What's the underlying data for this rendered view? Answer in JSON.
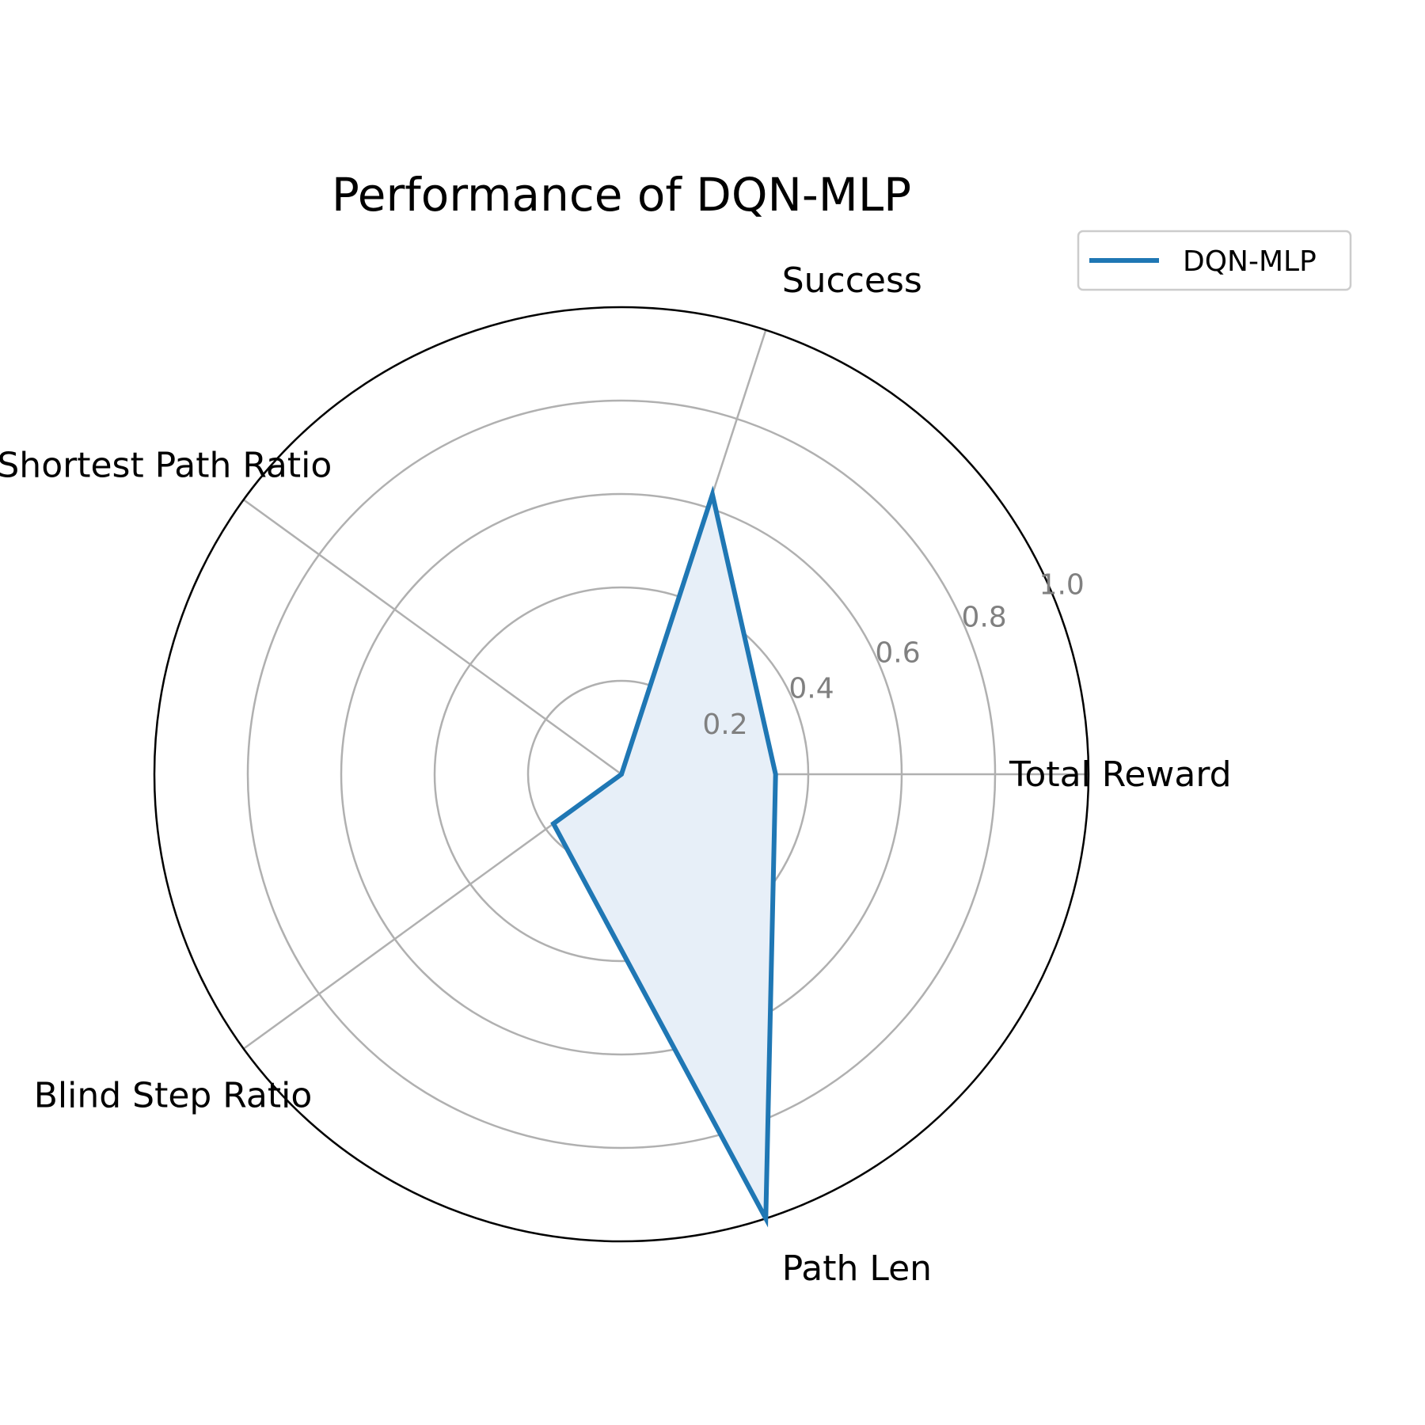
{
  "chart_data": {
    "type": "radar",
    "title": "Performance of DQN-MLP",
    "axes": [
      "Total Reward",
      "Success",
      "Shortest Path Ratio",
      "Blind Step Ratio",
      "Path Len"
    ],
    "rlim": [
      0,
      1.0
    ],
    "rticks": [
      0.2,
      0.4,
      0.6,
      0.8,
      1.0
    ],
    "rtick_labels": [
      "0.2",
      "0.4",
      "0.6",
      "0.8",
      "1.0"
    ],
    "grid": true,
    "legend": {
      "placement": "top-right",
      "entries": [
        "DQN-MLP"
      ]
    },
    "series": [
      {
        "name": "DQN-MLP",
        "values": [
          0.33,
          0.63,
          0.0,
          0.18,
          1.0
        ],
        "color": "#1f77b4",
        "fill_color": "#e7eff8"
      }
    ]
  }
}
